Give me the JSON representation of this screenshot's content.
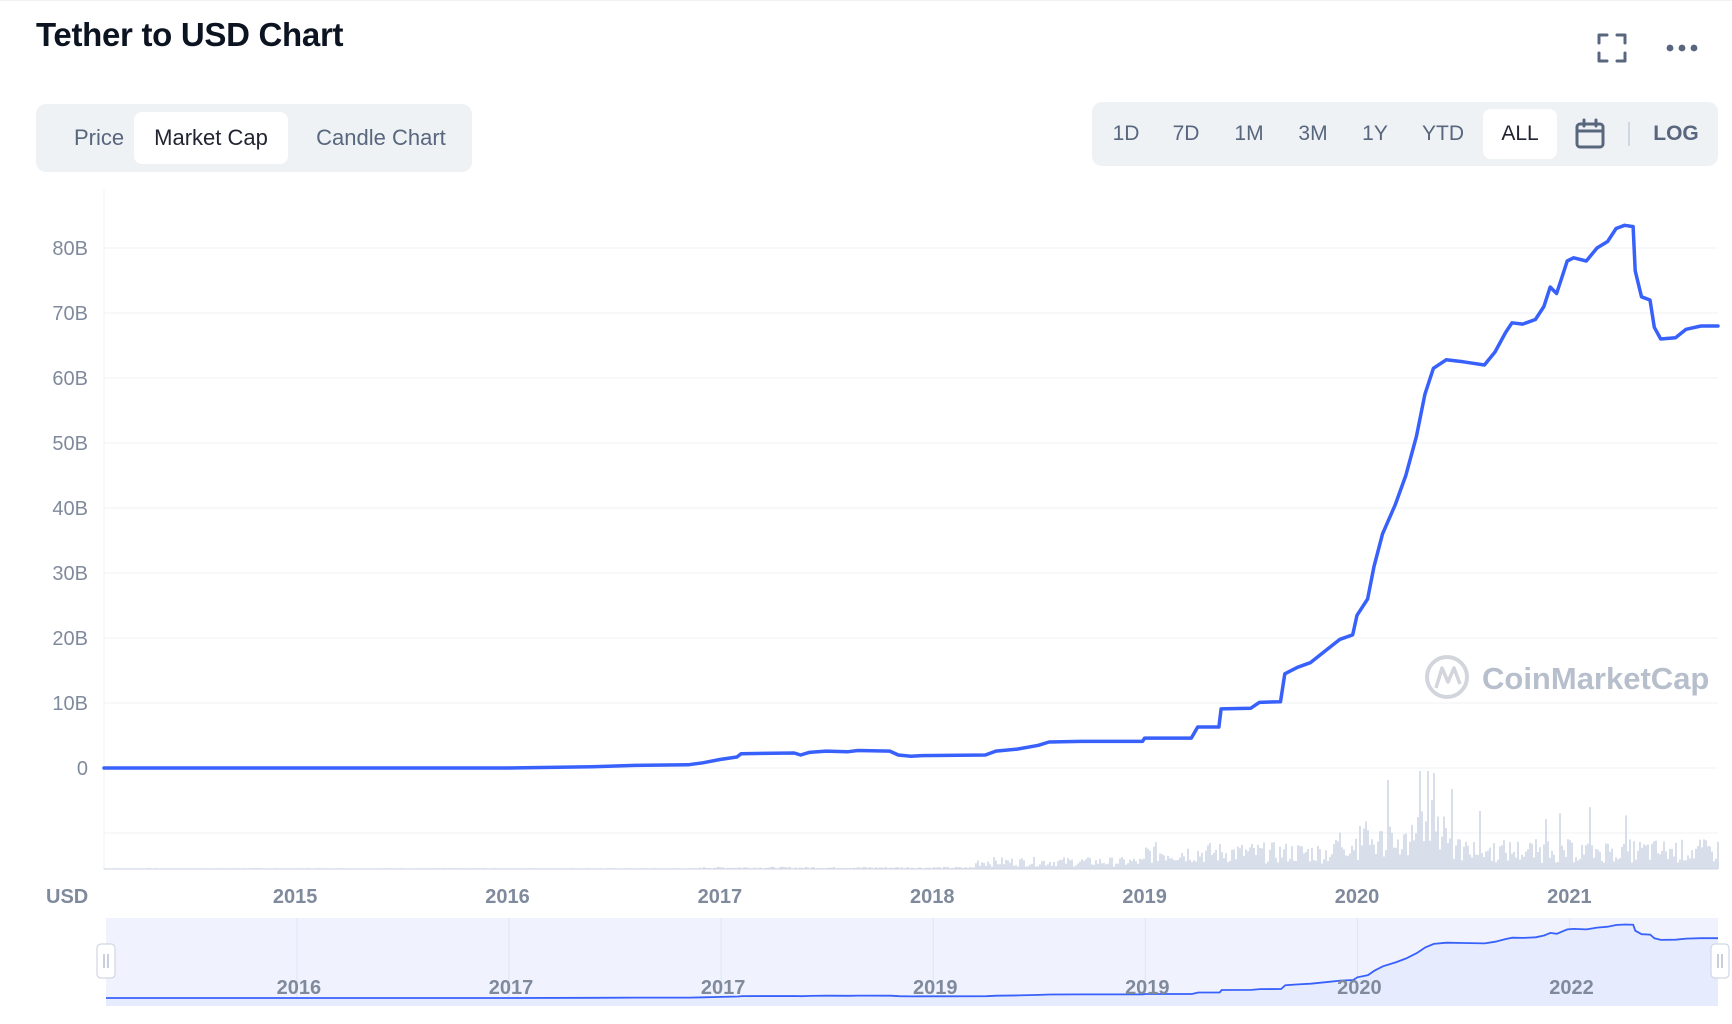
{
  "header": {
    "title": "Tether to USD Chart",
    "fullscreen_icon": "fullscreen-icon",
    "more_icon": "more-dots-icon"
  },
  "chart_type_tabs": [
    {
      "label": "Price",
      "active": false
    },
    {
      "label": "Market Cap",
      "active": true
    },
    {
      "label": "Candle Chart",
      "active": false
    }
  ],
  "range_tabs": [
    {
      "label": "1D",
      "active": false
    },
    {
      "label": "7D",
      "active": false
    },
    {
      "label": "1M",
      "active": false
    },
    {
      "label": "3M",
      "active": false
    },
    {
      "label": "1Y",
      "active": false
    },
    {
      "label": "YTD",
      "active": false
    },
    {
      "label": "ALL",
      "active": true
    }
  ],
  "calendar_icon": "calendar-icon",
  "log_label": "LOG",
  "watermark": {
    "text": "CoinMarketCap",
    "icon": "coinmarketcap-logo-icon"
  },
  "colors": {
    "line": "#3861fb",
    "volume": "#cfd6e4",
    "grid": "#eff2f5",
    "axis_text": "#808a9d",
    "navigator_fill": "#e6ecfd"
  },
  "chart_data": {
    "type": "line",
    "title": "Tether to USD Chart",
    "currency_label": "USD",
    "x_range": [
      2014.1,
      2021.7
    ],
    "y_range": [
      0,
      85
    ],
    "y_ticks": [
      {
        "value": 0,
        "label": "0"
      },
      {
        "value": 10,
        "label": "10B"
      },
      {
        "value": 20,
        "label": "20B"
      },
      {
        "value": 30,
        "label": "30B"
      },
      {
        "value": 40,
        "label": "40B"
      },
      {
        "value": 50,
        "label": "50B"
      },
      {
        "value": 60,
        "label": "60B"
      },
      {
        "value": 70,
        "label": "70B"
      },
      {
        "value": 80,
        "label": "80B"
      }
    ],
    "x_ticks": [
      {
        "value": 2015,
        "label": "2015"
      },
      {
        "value": 2016,
        "label": "2016"
      },
      {
        "value": 2017,
        "label": "2017"
      },
      {
        "value": 2018,
        "label": "2018"
      },
      {
        "value": 2019,
        "label": "2019"
      },
      {
        "value": 2020,
        "label": "2020"
      },
      {
        "value": 2021,
        "label": "2021"
      }
    ],
    "grid": true,
    "series": [
      {
        "values_unit": "B USD",
        "points": [
          [
            2014.1,
            0.0
          ],
          [
            2015.0,
            0.0
          ],
          [
            2016.0,
            0.0
          ],
          [
            2016.4,
            0.2
          ],
          [
            2016.6,
            0.4
          ],
          [
            2016.85,
            0.5
          ],
          [
            2016.92,
            0.8
          ],
          [
            2017.0,
            1.3
          ],
          [
            2017.08,
            1.7
          ],
          [
            2017.1,
            2.2
          ],
          [
            2017.35,
            2.3
          ],
          [
            2017.38,
            2.0
          ],
          [
            2017.42,
            2.4
          ],
          [
            2017.5,
            2.6
          ],
          [
            2017.6,
            2.5
          ],
          [
            2017.65,
            2.7
          ],
          [
            2017.8,
            2.6
          ],
          [
            2017.84,
            2.0
          ],
          [
            2017.9,
            1.8
          ],
          [
            2017.95,
            1.9
          ],
          [
            2018.25,
            2.0
          ],
          [
            2018.3,
            2.6
          ],
          [
            2018.4,
            2.9
          ],
          [
            2018.5,
            3.5
          ],
          [
            2018.55,
            4.0
          ],
          [
            2018.7,
            4.1
          ],
          [
            2018.99,
            4.1
          ],
          [
            2019.0,
            4.6
          ],
          [
            2019.22,
            4.6
          ],
          [
            2019.25,
            6.3
          ],
          [
            2019.35,
            6.3
          ],
          [
            2019.36,
            9.1
          ],
          [
            2019.5,
            9.2
          ],
          [
            2019.54,
            10.1
          ],
          [
            2019.64,
            10.2
          ],
          [
            2019.66,
            14.5
          ],
          [
            2019.72,
            15.5
          ],
          [
            2019.78,
            16.2
          ],
          [
            2019.85,
            18.0
          ],
          [
            2019.92,
            19.8
          ],
          [
            2019.98,
            20.5
          ],
          [
            2020.0,
            23.5
          ],
          [
            2020.05,
            26.0
          ],
          [
            2020.08,
            31.0
          ],
          [
            2020.12,
            36.0
          ],
          [
            2020.18,
            40.5
          ],
          [
            2020.23,
            45.0
          ],
          [
            2020.28,
            51.0
          ],
          [
            2020.32,
            57.5
          ],
          [
            2020.36,
            61.5
          ],
          [
            2020.42,
            62.8
          ],
          [
            2020.5,
            62.5
          ],
          [
            2020.6,
            62.0
          ],
          [
            2020.65,
            64.0
          ],
          [
            2020.7,
            67.0
          ],
          [
            2020.73,
            68.5
          ],
          [
            2020.78,
            68.3
          ],
          [
            2020.84,
            69.0
          ],
          [
            2020.88,
            71.0
          ],
          [
            2020.91,
            74.0
          ],
          [
            2020.94,
            73.0
          ],
          [
            2020.97,
            76.0
          ],
          [
            2020.99,
            78.0
          ],
          [
            2021.02,
            78.5
          ],
          [
            2021.08,
            78.0
          ],
          [
            2021.13,
            80.0
          ],
          [
            2021.18,
            81.0
          ],
          [
            2021.22,
            83.0
          ],
          [
            2021.26,
            83.5
          ],
          [
            2021.3,
            83.3
          ],
          [
            2021.31,
            76.5
          ],
          [
            2021.34,
            72.5
          ],
          [
            2021.38,
            72.0
          ],
          [
            2021.4,
            67.8
          ],
          [
            2021.43,
            66.0
          ],
          [
            2021.5,
            66.2
          ],
          [
            2021.55,
            67.5
          ],
          [
            2021.62,
            68.0
          ],
          [
            2021.7,
            68.0
          ]
        ]
      }
    ],
    "navigator_x_labels": [
      {
        "value": 2015.0,
        "label": "2016"
      },
      {
        "value": 2016.0,
        "label": "2017"
      },
      {
        "value": 2017.0,
        "label": "2017"
      },
      {
        "value": 2018.0,
        "label": "2019"
      },
      {
        "value": 2019.0,
        "label": "2019"
      },
      {
        "value": 2020.0,
        "label": "2020"
      },
      {
        "value": 2021.0,
        "label": "2022"
      }
    ]
  }
}
